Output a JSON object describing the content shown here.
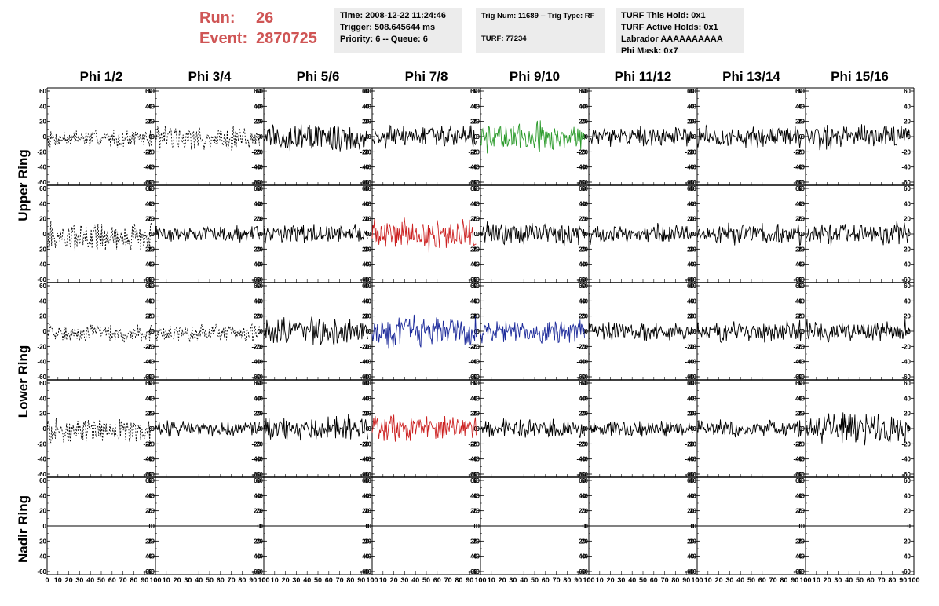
{
  "header": {
    "run_label": "Run:",
    "run_value": "26",
    "event_label": "Event:",
    "event_value": "2870725"
  },
  "info_boxes": {
    "box1": [
      "Time: 2008-12-22 11:24:46",
      "Trigger: 508.645644 ms",
      "Priority: 6 -- Queue: 6"
    ],
    "box2": [
      "Trig Num: 11689 -- Trig Type: RF",
      "TURF: 77234"
    ],
    "box3": [
      "TURF This Hold: 0x1",
      "TURF Active Holds: 0x1",
      "Labrador AAAAAAAAAA",
      "Phi Mask: 0x7"
    ]
  },
  "columns": [
    "Phi 1/2",
    "Phi 3/4",
    "Phi 5/6",
    "Phi 7/8",
    "Phi 9/10",
    "Phi 11/12",
    "Phi 13/14",
    "Phi 15/16"
  ],
  "row_labels": {
    "upper": "Upper Ring",
    "lower": "Lower Ring",
    "nadir": "Nadir Ring"
  },
  "chart_data": {
    "type": "line",
    "ylim": [
      -60,
      60
    ],
    "xlim": [
      0,
      100
    ],
    "y_ticks": [
      60,
      40,
      20,
      0,
      -20,
      -40,
      -60
    ],
    "x_ticks": [
      0,
      10,
      20,
      30,
      40,
      50,
      60,
      70,
      80,
      90,
      100
    ],
    "x_tick_labels": [
      "0",
      "10",
      "20",
      "30",
      "40",
      "50",
      "60",
      "70",
      "80",
      "90",
      "100"
    ],
    "colors": {
      "default": "#000000",
      "green": "#2a9a2a",
      "red": "#cc2222",
      "blue": "#1c2a9a"
    },
    "panels": [
      {
        "row": 0,
        "col": 0,
        "color": "default",
        "dashed": true,
        "amp": 9
      },
      {
        "row": 0,
        "col": 1,
        "color": "default",
        "dashed": true,
        "amp": 13
      },
      {
        "row": 0,
        "col": 2,
        "color": "default",
        "dashed": false,
        "amp": 15
      },
      {
        "row": 0,
        "col": 3,
        "color": "default",
        "dashed": false,
        "amp": 11
      },
      {
        "row": 0,
        "col": 4,
        "color": "green",
        "dashed": false,
        "amp": 15
      },
      {
        "row": 0,
        "col": 5,
        "color": "default",
        "dashed": false,
        "amp": 10
      },
      {
        "row": 0,
        "col": 6,
        "color": "default",
        "dashed": false,
        "amp": 11
      },
      {
        "row": 0,
        "col": 7,
        "color": "default",
        "dashed": false,
        "amp": 13
      },
      {
        "row": 1,
        "col": 0,
        "color": "default",
        "dashed": true,
        "amp": 15
      },
      {
        "row": 1,
        "col": 1,
        "color": "default",
        "dashed": false,
        "amp": 8
      },
      {
        "row": 1,
        "col": 2,
        "color": "default",
        "dashed": false,
        "amp": 10
      },
      {
        "row": 1,
        "col": 3,
        "color": "red",
        "dashed": false,
        "amp": 17
      },
      {
        "row": 1,
        "col": 4,
        "color": "default",
        "dashed": false,
        "amp": 12
      },
      {
        "row": 1,
        "col": 5,
        "color": "default",
        "dashed": false,
        "amp": 10
      },
      {
        "row": 1,
        "col": 6,
        "color": "default",
        "dashed": false,
        "amp": 11
      },
      {
        "row": 1,
        "col": 7,
        "color": "default",
        "dashed": false,
        "amp": 12
      },
      {
        "row": 2,
        "col": 0,
        "color": "default",
        "dashed": true,
        "amp": 9
      },
      {
        "row": 2,
        "col": 1,
        "color": "default",
        "dashed": true,
        "amp": 9
      },
      {
        "row": 2,
        "col": 2,
        "color": "default",
        "dashed": false,
        "amp": 13
      },
      {
        "row": 2,
        "col": 3,
        "color": "blue",
        "dashed": false,
        "amp": 16
      },
      {
        "row": 2,
        "col": 4,
        "color": "blue",
        "dashed": false,
        "amp": 12
      },
      {
        "row": 2,
        "col": 5,
        "color": "default",
        "dashed": false,
        "amp": 10
      },
      {
        "row": 2,
        "col": 6,
        "color": "default",
        "dashed": false,
        "amp": 11
      },
      {
        "row": 2,
        "col": 7,
        "color": "default",
        "dashed": false,
        "amp": 11
      },
      {
        "row": 3,
        "col": 0,
        "color": "default",
        "dashed": true,
        "amp": 12
      },
      {
        "row": 3,
        "col": 1,
        "color": "default",
        "dashed": false,
        "amp": 8
      },
      {
        "row": 3,
        "col": 2,
        "color": "default",
        "dashed": false,
        "amp": 13
      },
      {
        "row": 3,
        "col": 3,
        "color": "red",
        "dashed": false,
        "amp": 13
      },
      {
        "row": 3,
        "col": 4,
        "color": "default",
        "dashed": false,
        "amp": 10
      },
      {
        "row": 3,
        "col": 5,
        "color": "default",
        "dashed": false,
        "amp": 8
      },
      {
        "row": 3,
        "col": 6,
        "color": "default",
        "dashed": false,
        "amp": 9
      },
      {
        "row": 3,
        "col": 7,
        "color": "default",
        "dashed": false,
        "amp": 15
      },
      {
        "row": 4,
        "col": 0,
        "color": "default",
        "dashed": false,
        "amp": 0
      },
      {
        "row": 4,
        "col": 1,
        "color": "default",
        "dashed": false,
        "amp": 0
      },
      {
        "row": 4,
        "col": 2,
        "color": "default",
        "dashed": false,
        "amp": 0
      },
      {
        "row": 4,
        "col": 3,
        "color": "default",
        "dashed": false,
        "amp": 0
      },
      {
        "row": 4,
        "col": 4,
        "color": "default",
        "dashed": false,
        "amp": 0
      },
      {
        "row": 4,
        "col": 5,
        "color": "default",
        "dashed": false,
        "amp": 0
      },
      {
        "row": 4,
        "col": 6,
        "color": "default",
        "dashed": false,
        "amp": 0
      },
      {
        "row": 4,
        "col": 7,
        "color": "default",
        "dashed": false,
        "amp": 0
      }
    ]
  }
}
